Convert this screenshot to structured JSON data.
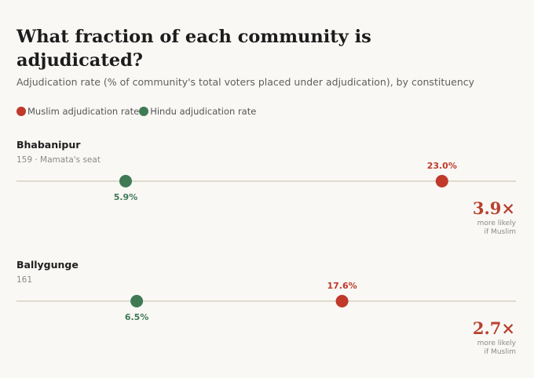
{
  "title": "What fraction of each community is adjudicated?",
  "subtitle": "Adjudication rate (% of community's total voters placed under adjudication), by constituency",
  "colors": {
    "muslim": "#c0392b",
    "hindu": "#3f7a55",
    "track": "#d9cfc2",
    "ratio": "#b8412f"
  },
  "legend": [
    {
      "label": "Muslim adjudication rate",
      "color": "#c0392b"
    },
    {
      "label": "Hindu adjudication rate",
      "color": "#3f7a55"
    }
  ],
  "chart_data": {
    "type": "dot",
    "xlim": [
      0,
      27
    ],
    "series": [
      {
        "name": "Muslim adjudication rate",
        "color": "#c0392b"
      },
      {
        "name": "Hindu adjudication rate",
        "color": "#3f7a55"
      }
    ],
    "rows": [
      {
        "name": "Bhabanipur",
        "sub": "159 · Mamata's seat",
        "muslim": 23.0,
        "muslim_label": "23.0%",
        "hindu": 5.9,
        "hindu_label": "5.9%",
        "ratio": "3.9×",
        "note1": "more likely",
        "note2": "if Muslim"
      },
      {
        "name": "Ballygunge",
        "sub": "161",
        "muslim": 17.6,
        "muslim_label": "17.6%",
        "hindu": 6.5,
        "hindu_label": "6.5%",
        "ratio": "2.7×",
        "note1": "more likely",
        "note2": "if Muslim"
      }
    ]
  }
}
